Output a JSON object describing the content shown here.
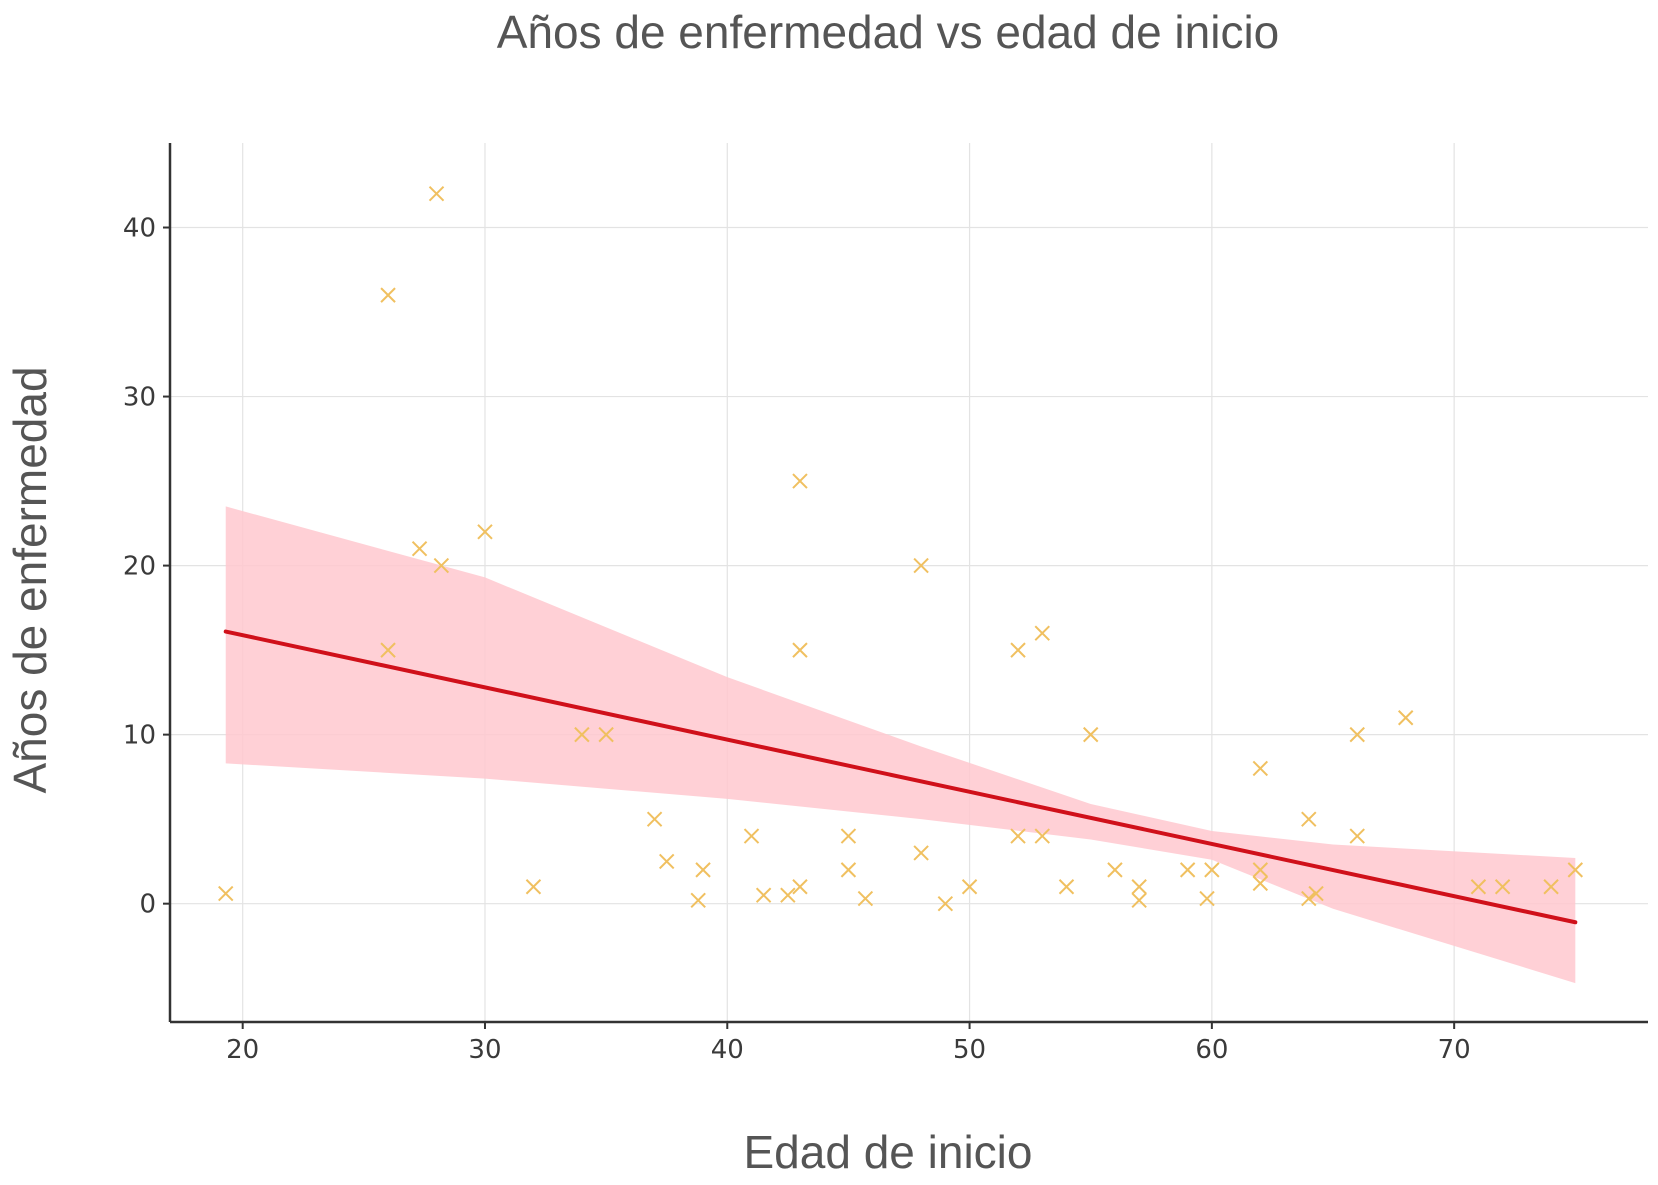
{
  "chart_data": {
    "type": "scatter",
    "title": "Años de enfermedad vs edad de inicio",
    "xlabel": "Edad de inicio",
    "ylabel": "Años de enfermedad",
    "xlim": [
      17,
      78
    ],
    "ylim": [
      -7,
      45
    ],
    "xticks": [
      20,
      30,
      40,
      50,
      60,
      70
    ],
    "yticks": [
      0,
      10,
      20,
      30,
      40
    ],
    "grid": true,
    "marker": "x",
    "point_color": "#f0c060",
    "line_color": "#d0101a",
    "band_color": "#ffc8cf",
    "points": [
      [
        19.3,
        0.6
      ],
      [
        26,
        36
      ],
      [
        26,
        15
      ],
      [
        27.3,
        21
      ],
      [
        28,
        42
      ],
      [
        28.2,
        20
      ],
      [
        30,
        22
      ],
      [
        32,
        1
      ],
      [
        34,
        10
      ],
      [
        35,
        10
      ],
      [
        37,
        5
      ],
      [
        37.5,
        2.5
      ],
      [
        38.8,
        0.2
      ],
      [
        39,
        2
      ],
      [
        41,
        4
      ],
      [
        41.5,
        0.5
      ],
      [
        42.5,
        0.5
      ],
      [
        43,
        1
      ],
      [
        43,
        25
      ],
      [
        43,
        15
      ],
      [
        45,
        4
      ],
      [
        45,
        2
      ],
      [
        45.7,
        0.3
      ],
      [
        48,
        20
      ],
      [
        48,
        3
      ],
      [
        49,
        0
      ],
      [
        50,
        1
      ],
      [
        52,
        15
      ],
      [
        52,
        4
      ],
      [
        53,
        16
      ],
      [
        53,
        4
      ],
      [
        54,
        1
      ],
      [
        55,
        10
      ],
      [
        56,
        2
      ],
      [
        57,
        1
      ],
      [
        57,
        0.2
      ],
      [
        59,
        2
      ],
      [
        59.8,
        0.3
      ],
      [
        60,
        2
      ],
      [
        62,
        8
      ],
      [
        62,
        2
      ],
      [
        62,
        1.2
      ],
      [
        64,
        5
      ],
      [
        64,
        0.3
      ],
      [
        64.3,
        0.6
      ],
      [
        66,
        10
      ],
      [
        66,
        4
      ],
      [
        68,
        11
      ],
      [
        71,
        1
      ],
      [
        72,
        1
      ],
      [
        74,
        1
      ],
      [
        75,
        2
      ]
    ],
    "regression_line": [
      [
        19.3,
        16.1
      ],
      [
        75,
        -1.1
      ]
    ],
    "confidence_band": {
      "upper": [
        [
          19.3,
          23.5
        ],
        [
          30,
          19.3
        ],
        [
          40,
          13.4
        ],
        [
          48,
          9.3
        ],
        [
          55,
          5.9
        ],
        [
          60,
          4.3
        ],
        [
          65,
          3.5
        ],
        [
          75,
          2.7
        ]
      ],
      "lower": [
        [
          19.3,
          8.3
        ],
        [
          30,
          7.4
        ],
        [
          40,
          6.2
        ],
        [
          48,
          5.0
        ],
        [
          55,
          3.8
        ],
        [
          60,
          2.6
        ],
        [
          65,
          -0.3
        ],
        [
          75,
          -4.7
        ]
      ]
    }
  }
}
